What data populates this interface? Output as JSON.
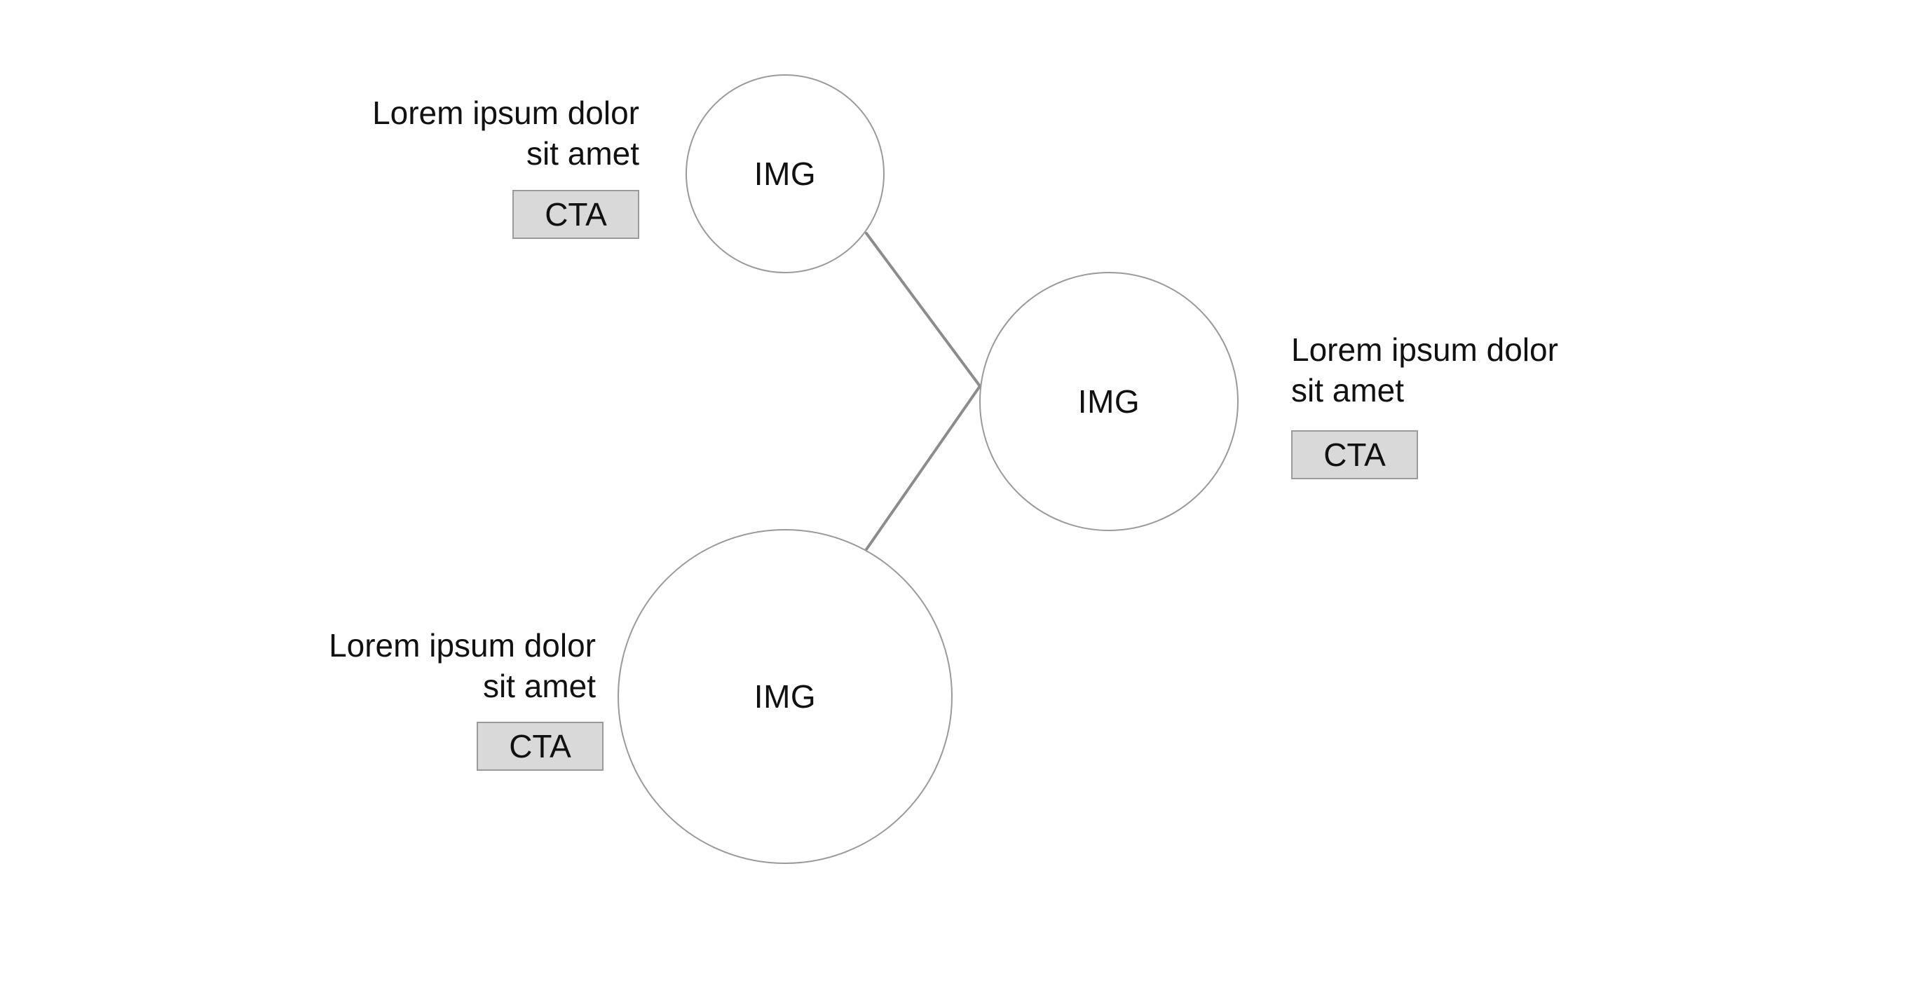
{
  "nodes": [
    {
      "image_label": "IMG",
      "text_line1": "Lorem ipsum dolor",
      "text_line2": "sit amet",
      "cta_label": "CTA"
    },
    {
      "image_label": "IMG",
      "text_line1": "Lorem ipsum dolor",
      "text_line2": "sit amet",
      "cta_label": "CTA"
    },
    {
      "image_label": "IMG",
      "text_line1": "Lorem ipsum dolor",
      "text_line2": "sit amet",
      "cta_label": "CTA"
    }
  ],
  "colors": {
    "circle_border": "#9a9a9a",
    "connector_line": "#8c8c8c",
    "cta_background": "#d9d9d9",
    "text": "#111111",
    "background": "#ffffff"
  }
}
